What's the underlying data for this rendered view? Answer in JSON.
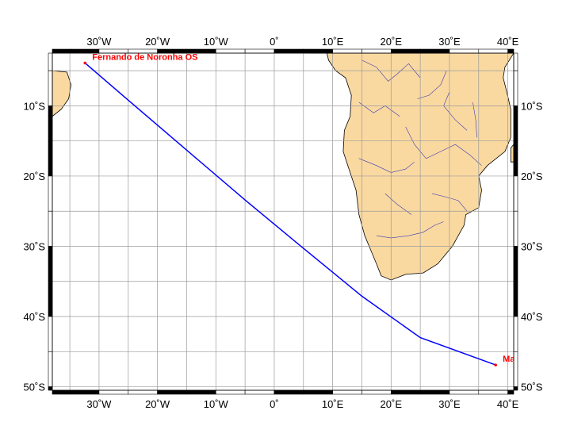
{
  "map": {
    "lon_range": [
      -38,
      41
    ],
    "lat_range": [
      -50.5,
      -2.5
    ],
    "grid_lons": [
      -35,
      -30,
      -25,
      -20,
      -15,
      -10,
      -5,
      0,
      5,
      10,
      15,
      20,
      25,
      30,
      35,
      40
    ],
    "grid_lats": [
      -5,
      -10,
      -15,
      -20,
      -25,
      -30,
      -35,
      -40,
      -45,
      -50
    ],
    "colors": {
      "land": "#fad9a1",
      "route": "#0000ff",
      "station": "#ff0000",
      "river": "#3a3ab0",
      "grid": "#9a9a9a"
    }
  },
  "axes": {
    "lon_ticks": [
      {
        "value": -30,
        "label": "30˚W"
      },
      {
        "value": -20,
        "label": "20˚W"
      },
      {
        "value": -10,
        "label": "10˚W"
      },
      {
        "value": 0,
        "label": "0˚"
      },
      {
        "value": 10,
        "label": "10˚E"
      },
      {
        "value": 20,
        "label": "20˚E"
      },
      {
        "value": 30,
        "label": "30˚E"
      },
      {
        "value": 40,
        "label": "40˚E"
      }
    ],
    "lat_ticks": [
      {
        "value": -10,
        "label": "10˚S"
      },
      {
        "value": -20,
        "label": "20˚S"
      },
      {
        "value": -30,
        "label": "30˚S"
      },
      {
        "value": -40,
        "label": "40˚S"
      },
      {
        "value": -50,
        "label": "50˚S"
      }
    ]
  },
  "stations": [
    {
      "name": "Fernando de Noronha OS",
      "lon": -32.4,
      "lat": -3.9
    },
    {
      "name": "Ma",
      "lon": 37.9,
      "lat": -46.9
    }
  ],
  "route": {
    "points": [
      [
        -32.4,
        -3.9
      ],
      [
        -25.0,
        -9.2
      ],
      [
        -15.0,
        -16.3
      ],
      [
        -5.0,
        -23.4
      ],
      [
        5.0,
        -30.3
      ],
      [
        15.0,
        -37.1
      ],
      [
        25.0,
        -43.0
      ],
      [
        37.9,
        -46.9
      ]
    ]
  },
  "landmasses": {
    "africa": [
      [
        5.5,
        -2.5
      ],
      [
        9.0,
        -2.5
      ],
      [
        9.3,
        -3.5
      ],
      [
        10.5,
        -5.0
      ],
      [
        12.2,
        -6.0
      ],
      [
        13.2,
        -8.5
      ],
      [
        13.0,
        -11.5
      ],
      [
        12.0,
        -13.5
      ],
      [
        11.8,
        -16.5
      ],
      [
        12.8,
        -19.0
      ],
      [
        14.0,
        -22.0
      ],
      [
        14.5,
        -25.5
      ],
      [
        15.5,
        -28.5
      ],
      [
        16.5,
        -30.5
      ],
      [
        17.5,
        -32.5
      ],
      [
        18.3,
        -34.2
      ],
      [
        20.0,
        -34.8
      ],
      [
        22.5,
        -34.0
      ],
      [
        25.5,
        -33.8
      ],
      [
        28.0,
        -32.5
      ],
      [
        30.5,
        -30.0
      ],
      [
        32.5,
        -27.0
      ],
      [
        32.8,
        -25.5
      ],
      [
        35.0,
        -24.5
      ],
      [
        35.5,
        -22.0
      ],
      [
        35.0,
        -20.0
      ],
      [
        36.5,
        -18.5
      ],
      [
        39.5,
        -16.5
      ],
      [
        40.5,
        -14.5
      ],
      [
        40.5,
        -10.5
      ],
      [
        39.8,
        -8.0
      ],
      [
        39.2,
        -6.0
      ],
      [
        39.5,
        -4.5
      ],
      [
        41.0,
        -2.5
      ]
    ],
    "madagascar": [
      [
        40.5,
        -16.0
      ],
      [
        41.0,
        -15.5
      ],
      [
        41.0,
        -18.0
      ],
      [
        40.5,
        -18.0
      ]
    ],
    "brazil": [
      [
        -38.0,
        -5.0
      ],
      [
        -35.5,
        -5.2
      ],
      [
        -34.8,
        -7.0
      ],
      [
        -35.2,
        -9.0
      ],
      [
        -36.5,
        -10.5
      ],
      [
        -38.0,
        -11.5
      ]
    ]
  },
  "rivers": [
    [
      [
        15.0,
        -3.5
      ],
      [
        17.5,
        -4.5
      ],
      [
        19.5,
        -6.5
      ],
      [
        21.0,
        -5.5
      ],
      [
        23.0,
        -4.0
      ],
      [
        25.0,
        -6.0
      ]
    ],
    [
      [
        14.5,
        -9.5
      ],
      [
        17.0,
        -11.0
      ],
      [
        19.0,
        -10.0
      ],
      [
        21.5,
        -11.5
      ]
    ],
    [
      [
        22.5,
        -13.0
      ],
      [
        24.0,
        -15.5
      ],
      [
        26.0,
        -17.5
      ],
      [
        28.5,
        -16.5
      ],
      [
        31.0,
        -15.5
      ],
      [
        33.5,
        -17.0
      ],
      [
        35.5,
        -18.5
      ]
    ],
    [
      [
        14.5,
        -17.5
      ],
      [
        17.5,
        -18.5
      ],
      [
        20.0,
        -19.5
      ],
      [
        22.5,
        -19.0
      ],
      [
        24.0,
        -18.0
      ]
    ],
    [
      [
        17.5,
        -28.5
      ],
      [
        20.0,
        -28.8
      ],
      [
        23.0,
        -28.5
      ],
      [
        25.5,
        -28.0
      ],
      [
        27.5,
        -27.0
      ],
      [
        29.0,
        -26.5
      ]
    ],
    [
      [
        27.0,
        -22.5
      ],
      [
        29.5,
        -23.0
      ],
      [
        31.5,
        -23.5
      ],
      [
        33.0,
        -25.0
      ]
    ],
    [
      [
        30.0,
        -8.0
      ],
      [
        29.0,
        -10.0
      ],
      [
        31.0,
        -12.0
      ],
      [
        33.0,
        -13.5
      ]
    ],
    [
      [
        34.0,
        -9.5
      ],
      [
        34.5,
        -12.0
      ],
      [
        34.7,
        -14.5
      ]
    ],
    [
      [
        24.5,
        -9.0
      ],
      [
        26.5,
        -8.5
      ],
      [
        28.5,
        -7.0
      ],
      [
        29.5,
        -5.0
      ]
    ],
    [
      [
        19.0,
        -22.5
      ],
      [
        21.0,
        -24.0
      ],
      [
        23.5,
        -25.5
      ]
    ]
  ]
}
